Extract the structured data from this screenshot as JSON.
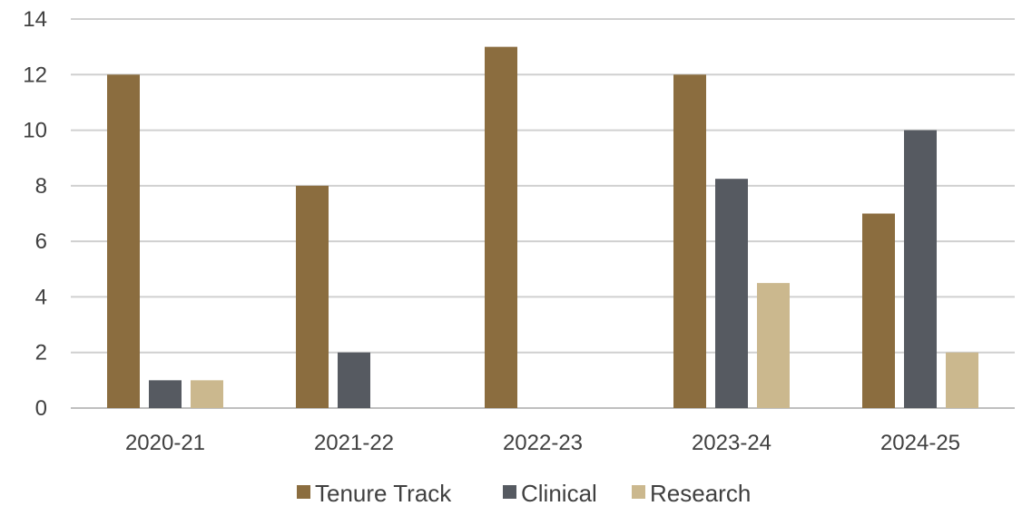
{
  "chart_data": {
    "type": "bar",
    "categories": [
      "2020-21",
      "2021-22",
      "2022-23",
      "2023-24",
      "2024-25"
    ],
    "series": [
      {
        "name": "Tenure Track",
        "color": "#8b6d3f",
        "values": [
          12,
          8,
          13,
          12,
          7
        ]
      },
      {
        "name": "Clinical",
        "color": "#565a61",
        "values": [
          1,
          2,
          0,
          8.25,
          10
        ]
      },
      {
        "name": "Research",
        "color": "#cbb88e",
        "values": [
          1,
          0,
          0,
          4.5,
          2
        ]
      }
    ],
    "yticks": [
      "0",
      "2",
      "4",
      "6",
      "8",
      "10",
      "12",
      "14"
    ],
    "ylim": [
      0,
      14
    ],
    "grid": true,
    "legend_position": "bottom"
  }
}
